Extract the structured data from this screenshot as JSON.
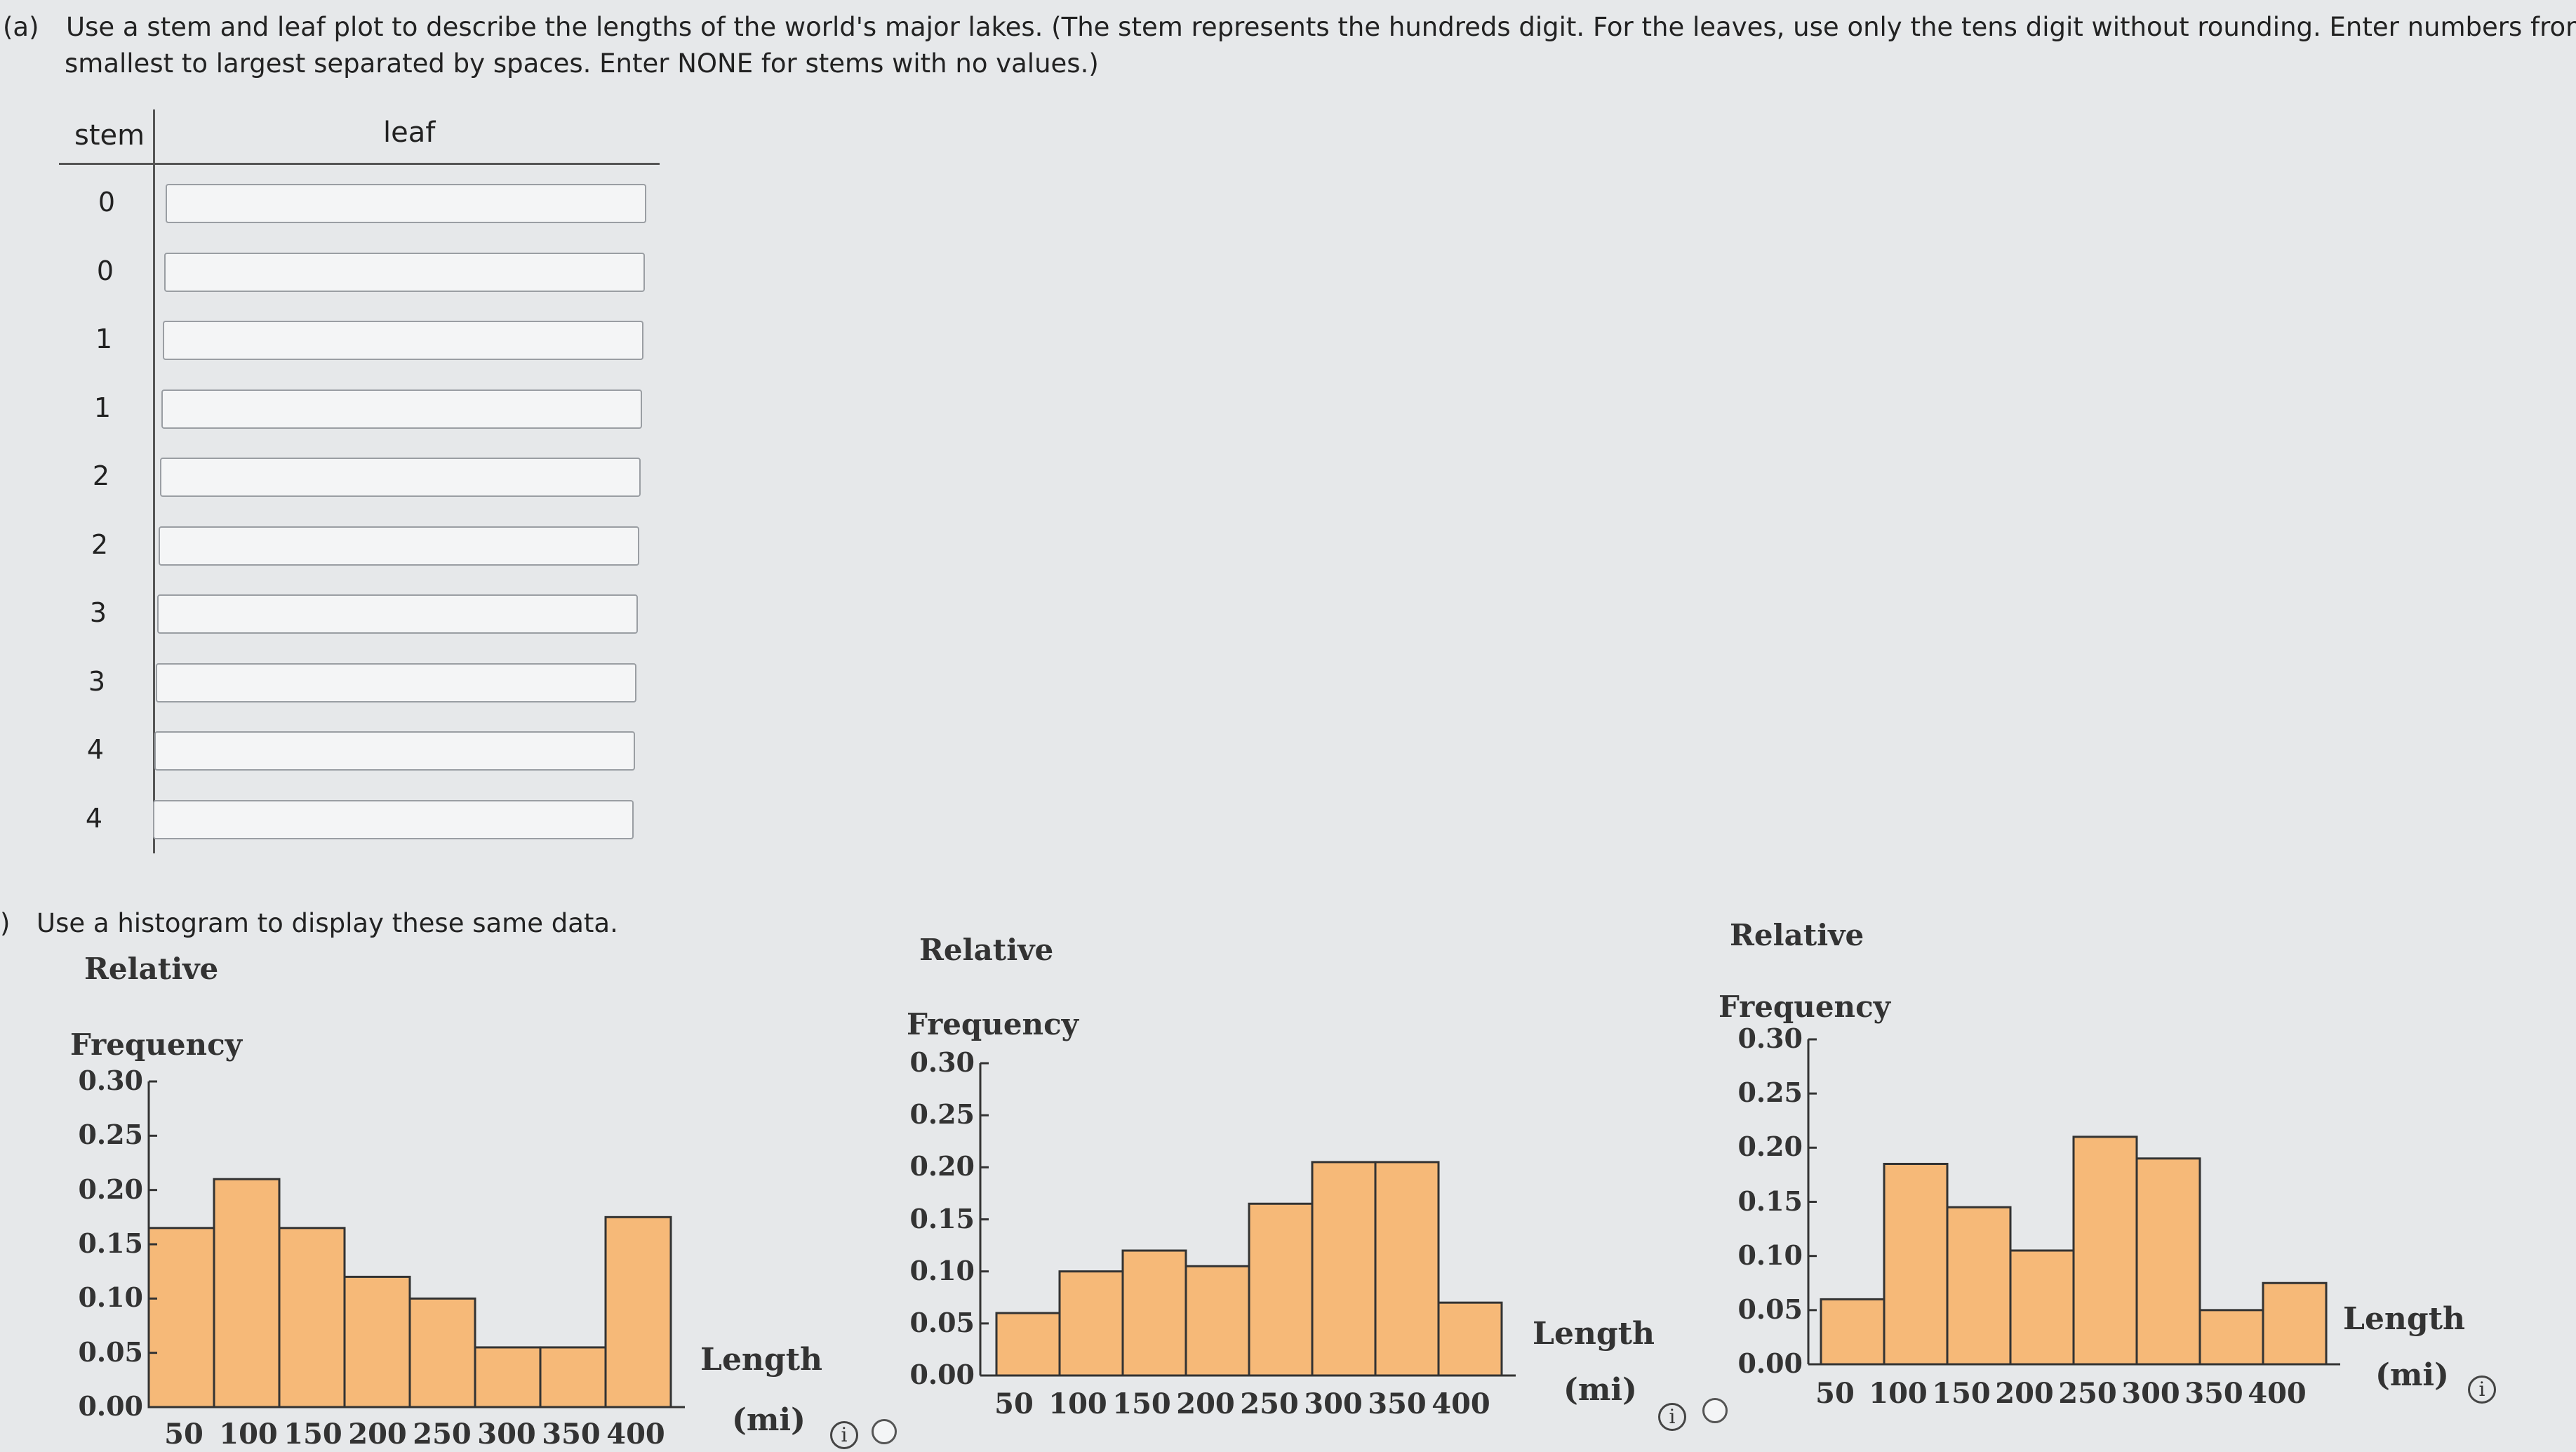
{
  "part_a": {
    "label": "(a)",
    "line1": "Use a stem and leaf plot to describe the lengths of the world's major lakes. (The stem represents the hundreds digit. For the leaves, use only the tens digit without rounding. Enter numbers from",
    "line2": "smallest to largest separated by spaces. Enter NONE for stems with no values.)",
    "stem_header": "stem",
    "leaf_header": "leaf",
    "stems": [
      "0",
      "0",
      "1",
      "1",
      "2",
      "2",
      "3",
      "3",
      "4",
      "4"
    ],
    "leaf_values": [
      "",
      "",
      "",
      "",
      "",
      "",
      "",
      "",
      "",
      ""
    ]
  },
  "part_b": {
    "label": ")",
    "instruction": "Use a histogram to display these same data."
  },
  "histogram_labels": {
    "ylabel_line1": "Relative",
    "ylabel_line2": "Frequency",
    "xlabel_line1": "Length",
    "xlabel_line2": "(mi)",
    "yticks": [
      "0.30",
      "0.25",
      "0.20",
      "0.15",
      "0.10",
      "0.05",
      "0.00"
    ],
    "xticks": [
      "50",
      "100",
      "150",
      "200",
      "250",
      "300",
      "350",
      "400"
    ]
  },
  "info_icon": "i",
  "colors": {
    "bar_fill": "#f6b978",
    "bar_stroke": "#333333",
    "page_bg": "#e6e8ea"
  },
  "chart_data": [
    {
      "type": "bar",
      "categories": [
        "0-50",
        "50-100",
        "100-150",
        "150-200",
        "200-250",
        "250-300",
        "300-350",
        "350-400"
      ],
      "values": [
        0.165,
        0.21,
        0.165,
        0.12,
        0.1,
        0.055,
        0.055,
        0.175
      ],
      "xlabel": "Length (mi)",
      "ylabel": "Relative Frequency",
      "ylim": [
        0,
        0.3
      ],
      "xticks": [
        "50",
        "100",
        "150",
        "200",
        "250",
        "300",
        "350",
        "400"
      ]
    },
    {
      "type": "bar",
      "categories": [
        "0-50",
        "50-100",
        "100-150",
        "150-200",
        "200-250",
        "250-300",
        "300-350",
        "350-400"
      ],
      "values": [
        0.06,
        0.1,
        0.12,
        0.105,
        0.165,
        0.205,
        0.205,
        0.07
      ],
      "xlabel": "Length (mi)",
      "ylabel": "Relative Frequency",
      "ylim": [
        0,
        0.3
      ],
      "xticks": [
        "50",
        "100",
        "150",
        "200",
        "250",
        "300",
        "350",
        "400"
      ]
    },
    {
      "type": "bar",
      "categories": [
        "0-50",
        "50-100",
        "100-150",
        "150-200",
        "200-250",
        "250-300",
        "300-350",
        "350-400"
      ],
      "values": [
        0.06,
        0.185,
        0.145,
        0.105,
        0.21,
        0.19,
        0.05,
        0.075
      ],
      "xlabel": "Length (mi)",
      "ylabel": "Relative Frequency",
      "ylim": [
        0,
        0.3
      ],
      "xticks": [
        "50",
        "100",
        "150",
        "200",
        "250",
        "300",
        "350",
        "400"
      ]
    }
  ]
}
